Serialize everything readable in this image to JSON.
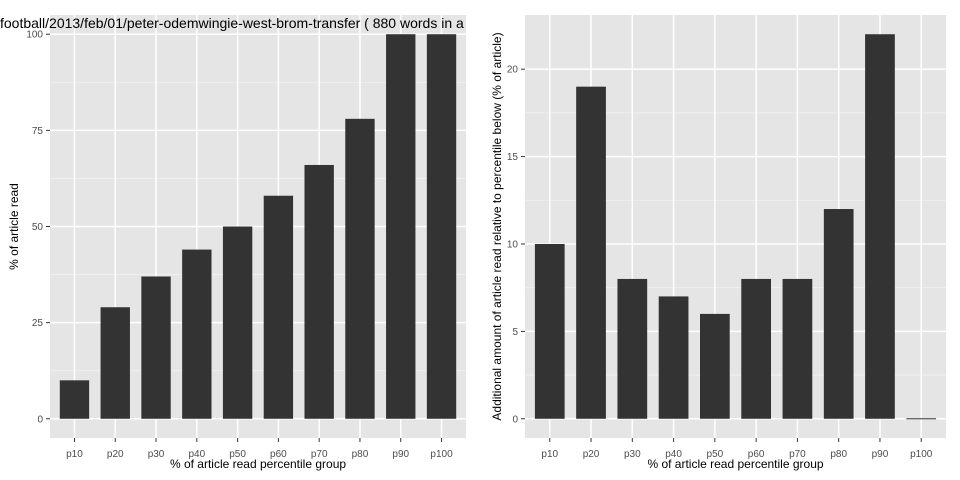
{
  "chart_data": [
    {
      "type": "bar",
      "title": "football/2013/feb/01/peter-odemwingie-west-brom-transfer ( 880 words in a",
      "xlabel": "% of article read percentile group",
      "ylabel": "% of article read",
      "categories": [
        "p10",
        "p20",
        "p30",
        "p40",
        "p50",
        "p60",
        "p70",
        "p80",
        "p90",
        "p100"
      ],
      "values": [
        10,
        29,
        37,
        44,
        50,
        58,
        66,
        78,
        100,
        100
      ],
      "ylim": [
        -5,
        105
      ],
      "yticks": [
        0,
        25,
        50,
        75,
        100
      ],
      "grid": true,
      "colors": {
        "panel": "#e5e5e5",
        "bar": "#333333",
        "grid_major": "#ffffff",
        "grid_minor": "#f2f2f2"
      }
    },
    {
      "type": "bar",
      "title": "",
      "xlabel": "% of article read percentile group",
      "ylabel": "Additional amount of article read relative to percentile below (% of article)",
      "categories": [
        "p10",
        "p20",
        "p30",
        "p40",
        "p50",
        "p60",
        "p70",
        "p80",
        "p90",
        "p100"
      ],
      "values": [
        10,
        19,
        8,
        7,
        6,
        8,
        8,
        12,
        22,
        0
      ],
      "ylim": [
        -1.1,
        23.1
      ],
      "yticks": [
        0,
        5,
        10,
        15,
        20
      ],
      "grid": true,
      "colors": {
        "panel": "#e5e5e5",
        "bar": "#333333",
        "grid_major": "#ffffff",
        "grid_minor": "#f2f2f2"
      }
    }
  ]
}
